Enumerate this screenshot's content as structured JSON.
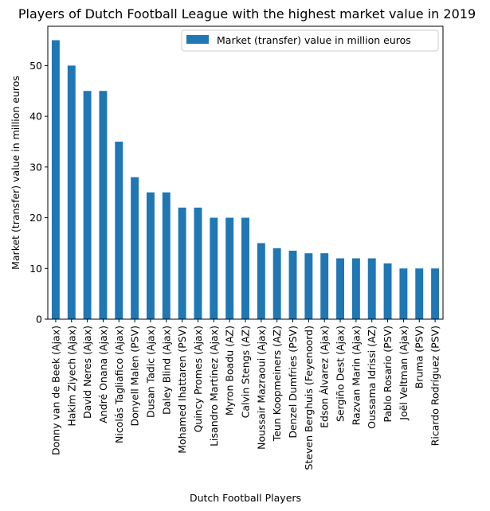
{
  "chart_data": {
    "type": "bar",
    "title": "Players of Dutch Football League with the highest market value in 2019",
    "xlabel": "Dutch Football Players",
    "ylabel": "Market (transfer) value in million euros",
    "ylim": [
      0,
      57.75
    ],
    "yticks": [
      0,
      10,
      20,
      30,
      40,
      50
    ],
    "legend_position": "top-right",
    "grid": false,
    "bar_color": "#1f77b4",
    "categories": [
      "Donny van de Beek (Ajax)",
      "Hakim Ziyech (Ajax)",
      "David Neres (Ajax)",
      "André Onana (Ajax)",
      "Nicolás Tagliafico (Ajax)",
      "Donyell Malen (PSV)",
      "Dusan Tadic (Ajax)",
      "Daley Blind (Ajax)",
      "Mohamed Ihattaren (PSV)",
      "Quincy Promes (Ajax)",
      "Lisandro Martínez (Ajax)",
      "Myron Boadu (AZ)",
      "Calvin Stengs (AZ)",
      "Noussair Mazraoui (Ajax)",
      "Teun Koopmeiners (AZ)",
      "Denzel Dumfries (PSV)",
      "Steven Berghuis (Feyenoord)",
      "Edson Álvarez (Ajax)",
      "Sergiño Dest (Ajax)",
      "Razvan Marin (Ajax)",
      "Oussama Idrissi (AZ)",
      "Pablo Rosario (PSV)",
      "Joël Veltman (Ajax)",
      "Bruma (PSV)",
      "Ricardo Rodríguez (PSV)"
    ],
    "series": [
      {
        "name": "Market (transfer) value in million euros",
        "values": [
          55,
          50,
          45,
          45,
          35,
          28,
          25,
          25,
          22,
          22,
          20,
          20,
          20,
          15,
          14,
          13.5,
          13,
          13,
          12,
          12,
          12,
          11,
          10,
          10,
          10
        ]
      }
    ]
  }
}
